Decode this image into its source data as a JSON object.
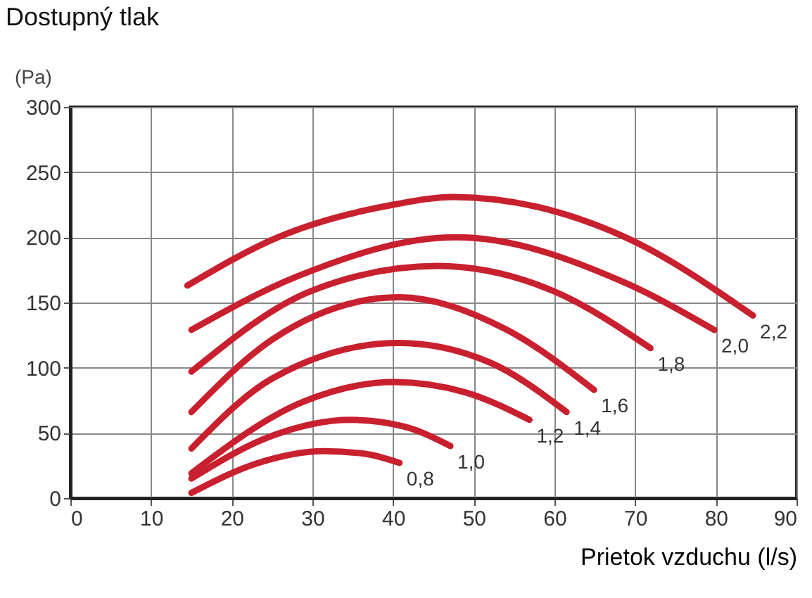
{
  "chart_data": {
    "type": "line",
    "title": "Dostupný tlak",
    "ylabel": "(Pa)",
    "xlabel": "Prietok vzduchu (l/s)",
    "xlim": [
      0,
      90
    ],
    "xticks": [
      0,
      10,
      20,
      30,
      40,
      50,
      60,
      70,
      80,
      90
    ],
    "ylim": [
      0,
      300
    ],
    "yticks": [
      0,
      50,
      100,
      150,
      200,
      250,
      300
    ],
    "grid": true,
    "legend": false,
    "marker": "none",
    "line_style": "solid",
    "series": [
      {
        "name": "2,2",
        "color": "#c8202f",
        "x": [
          14.5,
          25.7,
          40,
          47.5,
          68.8,
          84.6
        ],
        "values": [
          163,
          200,
          225,
          231,
          200,
          140
        ]
      },
      {
        "name": "2,0",
        "color": "#c8202f",
        "x": [
          15,
          28.1,
          47.8,
          68.8,
          79.8
        ],
        "values": [
          129,
          170,
          200,
          165,
          129
        ]
      },
      {
        "name": "1,8",
        "color": "#c8202f",
        "x": [
          15,
          29.9,
          45.5,
          59.8,
          71.9
        ],
        "values": [
          97,
          159,
          178,
          159,
          115
        ]
      },
      {
        "name": "1,6",
        "color": "#c8202f",
        "x": [
          15,
          25.1,
          40.7,
          53.8,
          64.9
        ],
        "values": [
          66,
          122,
          154,
          130,
          83
        ]
      },
      {
        "name": "1,4",
        "color": "#c8202f",
        "x": [
          15,
          25.1,
          40.7,
          52,
          61.5
        ],
        "values": [
          38,
          92,
          119,
          104,
          66
        ]
      },
      {
        "name": "1,2",
        "color": "#c8202f",
        "x": [
          15,
          28.9,
          40.1,
          49,
          56.9
        ],
        "values": [
          19,
          74,
          89,
          81,
          60
        ]
      },
      {
        "name": "1,0",
        "color": "#c8202f",
        "x": [
          15,
          25.1,
          34.7,
          41.3,
          47.1
        ],
        "values": [
          15,
          48,
          60,
          55,
          40
        ]
      },
      {
        "name": "0,8",
        "color": "#c8202f",
        "x": [
          15,
          23.3,
          31.4,
          36.5,
          40.8
        ],
        "values": [
          4,
          27,
          36,
          34,
          27
        ]
      }
    ]
  }
}
